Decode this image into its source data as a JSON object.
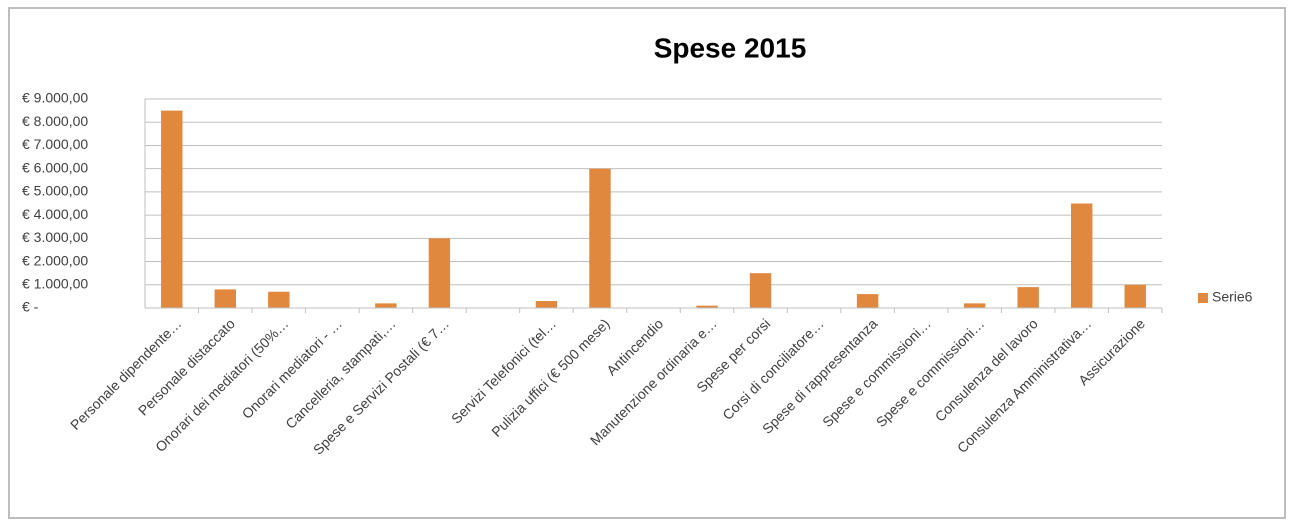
{
  "chart_data": {
    "type": "bar",
    "title": "Spese 2015",
    "categories": [
      "Personale dipendente…",
      "Personale distaccato",
      "Onorari dei mediatori (50%…",
      "Onorari mediatori - …",
      "Cancelleria, stampati,…",
      "Spese e Servizi Postali (€ 7…",
      null,
      "Servizi Telefonici (tel…",
      "Pulizia uffici (€ 500 mese)",
      "Antincendio",
      "Manutenzione ordinaria e…",
      "Spese per corsi",
      "Corsi di conciliatore…",
      "Spese di rappresentanza",
      "Spese e commissioni…",
      "Spese e commissioni…",
      "Consulenza del lavoro",
      "Consulenza Amministrativa…",
      "Assicurazione"
    ],
    "series": [
      {
        "name": "Serie6",
        "color": "#e0893e",
        "values": [
          8500,
          800,
          700,
          0,
          200,
          3000,
          0,
          300,
          6000,
          0,
          100,
          1500,
          0,
          600,
          0,
          200,
          900,
          4500,
          1000
        ]
      }
    ],
    "ylim": [
      0,
      9000
    ],
    "yticks": [
      {
        "value": 0,
        "label": "€ -"
      },
      {
        "value": 1000,
        "label": "€ 1.000,00"
      },
      {
        "value": 2000,
        "label": "€ 2.000,00"
      },
      {
        "value": 3000,
        "label": "€ 3.000,00"
      },
      {
        "value": 4000,
        "label": "€ 4.000,00"
      },
      {
        "value": 5000,
        "label": "€ 5.000,00"
      },
      {
        "value": 6000,
        "label": "€ 6.000,00"
      },
      {
        "value": 7000,
        "label": "€ 7.000,00"
      },
      {
        "value": 8000,
        "label": "€ 8.000,00"
      },
      {
        "value": 9000,
        "label": "€ 9.000,00"
      }
    ],
    "grid": true,
    "legend": "right"
  }
}
